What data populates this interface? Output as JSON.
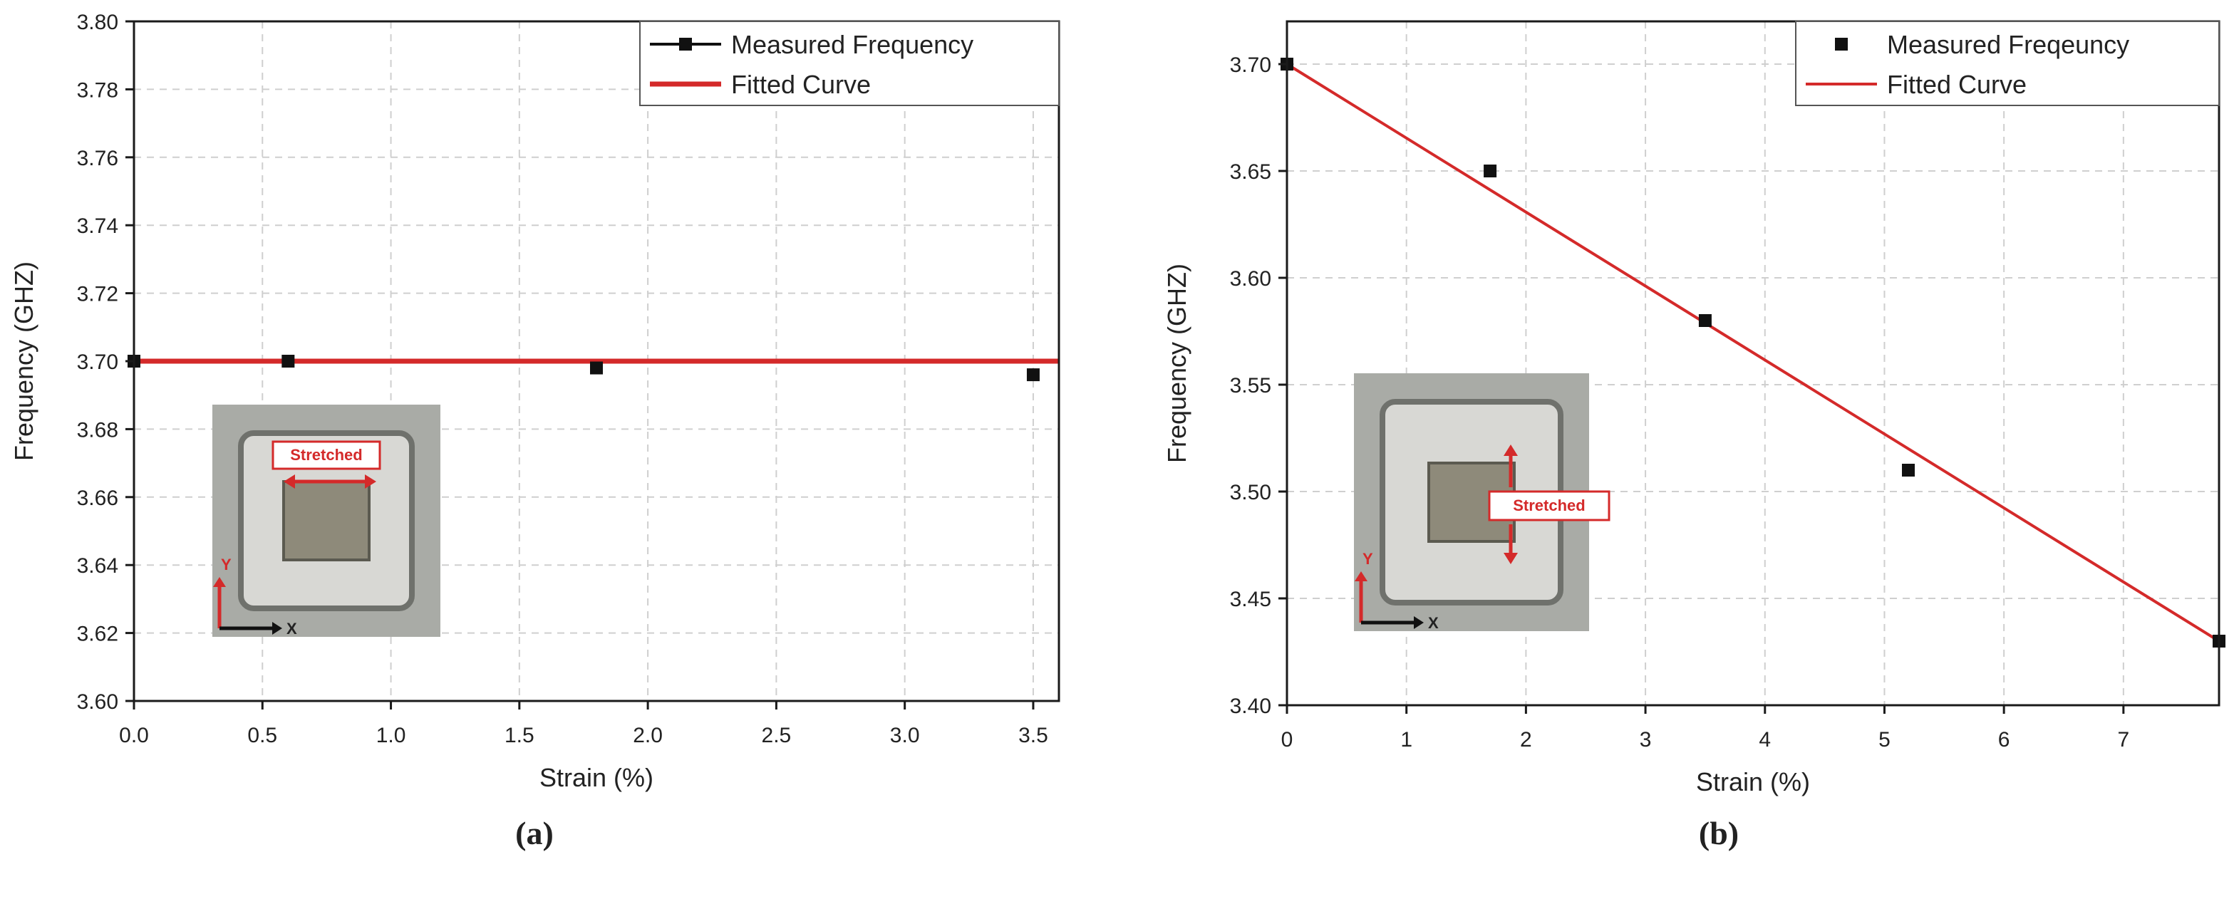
{
  "colors": {
    "grid": "#cfcfcf",
    "axis": "#1a1a1a",
    "fit_line": "#d42a2a",
    "marker": "#111111",
    "inset_label_border": "#d42a2a",
    "inset_label_text": "#d42a2a"
  },
  "chart_data": [
    {
      "type": "scatter",
      "panel_label": "(a)",
      "xlabel": "Strain (%)",
      "ylabel": "Frequency (GHZ)",
      "xlim": [
        0,
        3.6
      ],
      "ylim": [
        3.6,
        3.8
      ],
      "xticks": [
        0.0,
        0.5,
        1.0,
        1.5,
        2.0,
        2.5,
        3.0,
        3.5
      ],
      "xtick_labels": [
        "0.0",
        "0.5",
        "1.0",
        "1.5",
        "2.0",
        "2.5",
        "3.0",
        "3.5"
      ],
      "yticks": [
        3.6,
        3.62,
        3.64,
        3.66,
        3.68,
        3.7,
        3.72,
        3.74,
        3.76,
        3.78,
        3.8
      ],
      "ytick_labels": [
        "3.60",
        "3.62",
        "3.64",
        "3.66",
        "3.68",
        "3.70",
        "3.72",
        "3.74",
        "3.76",
        "3.78",
        "3.80"
      ],
      "grid": true,
      "legend_position": "top-right",
      "series": [
        {
          "name": "Measured Frequency",
          "kind": "points",
          "x": [
            0.0,
            0.6,
            1.8,
            3.5
          ],
          "y": [
            3.7,
            3.7,
            3.698,
            3.696
          ]
        },
        {
          "name": "Fitted Curve",
          "kind": "line",
          "x": [
            0.0,
            3.6
          ],
          "y": [
            3.7,
            3.7
          ]
        }
      ],
      "inset": {
        "label": "Stretched",
        "axis_y": "Y",
        "axis_x": "X",
        "stretch_direction": "horizontal"
      }
    },
    {
      "type": "scatter",
      "panel_label": "(b)",
      "xlabel": "Strain (%)",
      "ylabel": "Frequency (GHZ)",
      "xlim": [
        0,
        7.8
      ],
      "ylim": [
        3.4,
        3.72
      ],
      "xticks": [
        0,
        1,
        2,
        3,
        4,
        5,
        6,
        7
      ],
      "xtick_labels": [
        "0",
        "1",
        "2",
        "3",
        "4",
        "5",
        "6",
        "7"
      ],
      "yticks": [
        3.4,
        3.45,
        3.5,
        3.55,
        3.6,
        3.65,
        3.7
      ],
      "ytick_labels": [
        "3.40",
        "3.45",
        "3.50",
        "3.55",
        "3.60",
        "3.65",
        "3.70"
      ],
      "grid": true,
      "legend_position": "top-right",
      "series": [
        {
          "name": "Measured Freqeuncy",
          "kind": "points",
          "x": [
            0.0,
            1.7,
            3.5,
            5.2,
            7.8
          ],
          "y": [
            3.7,
            3.65,
            3.58,
            3.51,
            3.43
          ]
        },
        {
          "name": "Fitted Curve",
          "kind": "line",
          "x": [
            0.0,
            7.8
          ],
          "y": [
            3.7,
            3.43
          ]
        }
      ],
      "inset": {
        "label": "Stretched",
        "axis_y": "Y",
        "axis_x": "X",
        "stretch_direction": "vertical"
      }
    }
  ]
}
